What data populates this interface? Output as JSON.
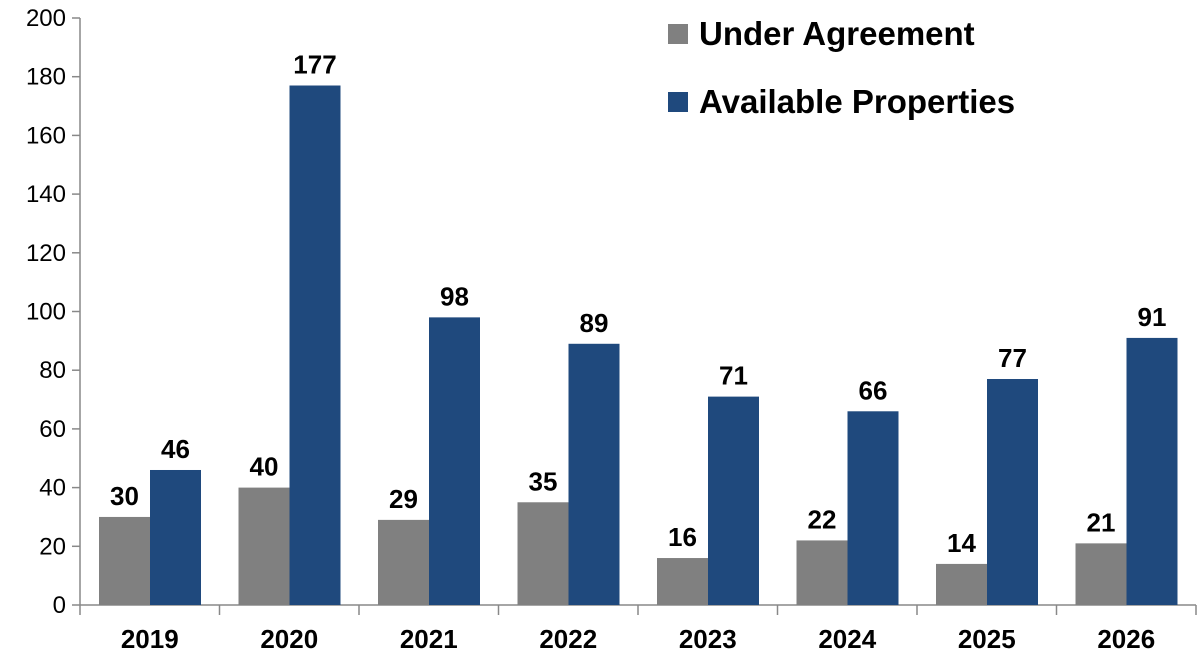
{
  "chart_data": {
    "type": "bar",
    "categories": [
      "2019",
      "2020",
      "2021",
      "2022",
      "2023",
      "2024",
      "2025",
      "2026"
    ],
    "series": [
      {
        "name": "Under Agreement",
        "values": [
          30,
          40,
          29,
          35,
          16,
          22,
          14,
          21
        ],
        "color": "#808080"
      },
      {
        "name": "Available Properties",
        "values": [
          46,
          177,
          98,
          89,
          71,
          66,
          77,
          91
        ],
        "color": "#1f497d"
      }
    ],
    "ylim": [
      0,
      200
    ],
    "yticks": [
      0,
      20,
      40,
      60,
      80,
      100,
      120,
      140,
      160,
      180,
      200
    ],
    "title": "",
    "xlabel": "",
    "ylabel": "",
    "grid": false,
    "legend_position": "top-right"
  }
}
